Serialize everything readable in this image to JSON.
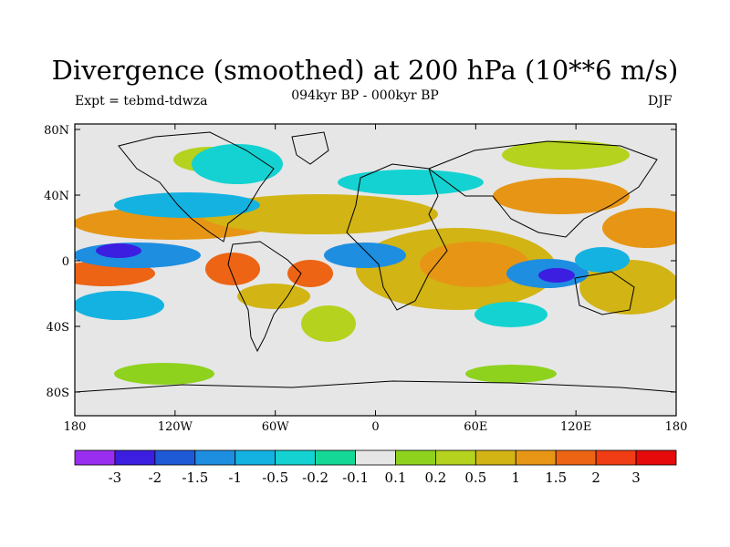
{
  "title": "Divergence (smoothed) at 200 hPa (10**6 m/s)",
  "experiment": "Expt = tebmd-tdwza",
  "period": "094kyr BP - 000kyr BP",
  "season": "DJF",
  "axes": {
    "lat_labels": [
      "80N",
      "40N",
      "0",
      "40S",
      "80S"
    ],
    "lon_labels": [
      "180",
      "120W",
      "60W",
      "0",
      "60E",
      "120E",
      "180"
    ]
  },
  "colorbar": {
    "colors": [
      "#9a2ef0",
      "#3c1ee0",
      "#1e5ad6",
      "#1e8ee0",
      "#14b2e0",
      "#14d2d2",
      "#14d896",
      "#e6e6e6",
      "#8ed21e",
      "#b4d21e",
      "#d2b414",
      "#e69614",
      "#ec6414",
      "#f03c14",
      "#e60a0a"
    ],
    "labels": [
      "-3",
      "-2",
      "-1.5",
      "-1",
      "-0.5",
      "-0.2",
      "-0.1",
      "0.1",
      "0.2",
      "0.5",
      "1",
      "1.5",
      "2",
      "3"
    ]
  }
}
